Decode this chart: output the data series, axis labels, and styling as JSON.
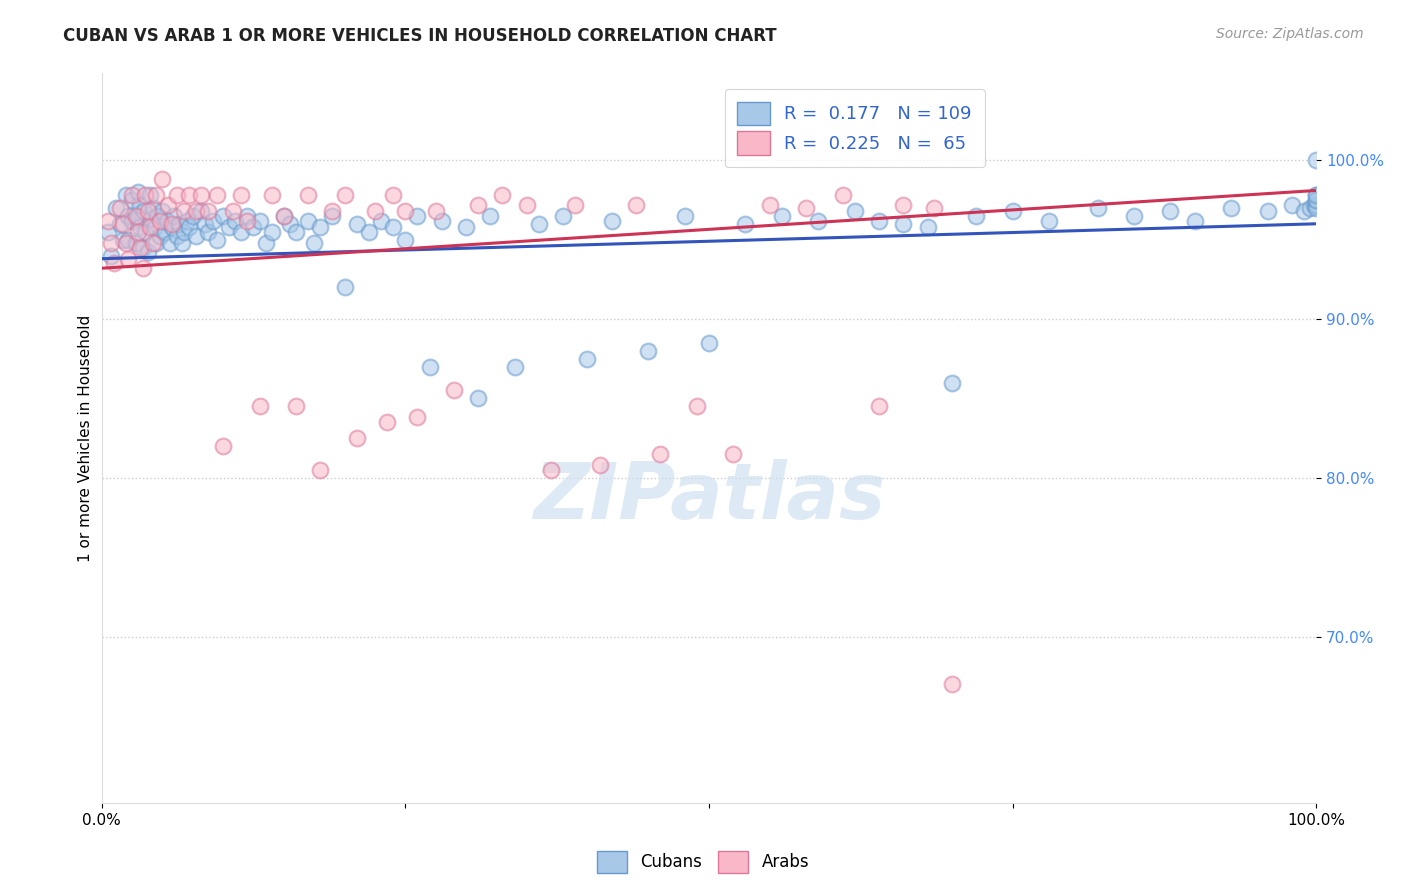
{
  "title": "CUBAN VS ARAB 1 OR MORE VEHICLES IN HOUSEHOLD CORRELATION CHART",
  "source": "Source: ZipAtlas.com",
  "ylabel": "1 or more Vehicles in Household",
  "ytick_labels": [
    "70.0%",
    "80.0%",
    "90.0%",
    "100.0%"
  ],
  "ytick_values": [
    0.7,
    0.8,
    0.9,
    1.0
  ],
  "xlim": [
    0.0,
    1.0
  ],
  "ylim": [
    0.595,
    1.055
  ],
  "legend_entries": [
    {
      "label": "Cubans",
      "color": "#a8c8e8",
      "edgecolor": "#6699cc",
      "R": 0.177,
      "N": 109
    },
    {
      "label": "Arabs",
      "color": "#f8b8c8",
      "edgecolor": "#dd7799",
      "R": 0.225,
      "N": 65
    }
  ],
  "watermark": "ZIPatlas",
  "blue_scatter_x": [
    0.005,
    0.008,
    0.012,
    0.015,
    0.018,
    0.02,
    0.022,
    0.022,
    0.025,
    0.025,
    0.028,
    0.03,
    0.03,
    0.032,
    0.032,
    0.034,
    0.035,
    0.036,
    0.038,
    0.04,
    0.04,
    0.042,
    0.044,
    0.045,
    0.046,
    0.048,
    0.05,
    0.052,
    0.054,
    0.056,
    0.058,
    0.06,
    0.062,
    0.064,
    0.066,
    0.068,
    0.07,
    0.072,
    0.075,
    0.078,
    0.082,
    0.085,
    0.088,
    0.092,
    0.095,
    0.1,
    0.105,
    0.11,
    0.115,
    0.12,
    0.125,
    0.13,
    0.135,
    0.14,
    0.15,
    0.155,
    0.16,
    0.17,
    0.175,
    0.18,
    0.19,
    0.2,
    0.21,
    0.22,
    0.23,
    0.24,
    0.25,
    0.26,
    0.27,
    0.28,
    0.3,
    0.31,
    0.32,
    0.34,
    0.36,
    0.38,
    0.4,
    0.42,
    0.45,
    0.48,
    0.5,
    0.53,
    0.56,
    0.59,
    0.62,
    0.64,
    0.66,
    0.68,
    0.7,
    0.72,
    0.75,
    0.78,
    0.82,
    0.85,
    0.88,
    0.9,
    0.93,
    0.96,
    0.98,
    0.99,
    0.995,
    0.998,
    1.0,
    1.0,
    1.0,
    1.0,
    1.0,
    1.0,
    1.0
  ],
  "blue_scatter_y": [
    0.955,
    0.94,
    0.97,
    0.96,
    0.95,
    0.978,
    0.965,
    0.95,
    0.975,
    0.962,
    0.948,
    0.98,
    0.965,
    0.972,
    0.958,
    0.945,
    0.968,
    0.955,
    0.942,
    0.978,
    0.963,
    0.97,
    0.958,
    0.948,
    0.965,
    0.952,
    0.968,
    0.955,
    0.962,
    0.948,
    0.958,
    0.965,
    0.952,
    0.96,
    0.948,
    0.955,
    0.962,
    0.958,
    0.965,
    0.952,
    0.968,
    0.96,
    0.955,
    0.962,
    0.95,
    0.965,
    0.958,
    0.962,
    0.955,
    0.965,
    0.958,
    0.962,
    0.948,
    0.955,
    0.965,
    0.96,
    0.955,
    0.962,
    0.948,
    0.958,
    0.965,
    0.92,
    0.96,
    0.955,
    0.962,
    0.958,
    0.95,
    0.965,
    0.87,
    0.962,
    0.958,
    0.85,
    0.965,
    0.87,
    0.96,
    0.965,
    0.875,
    0.962,
    0.88,
    0.965,
    0.885,
    0.96,
    0.965,
    0.962,
    0.968,
    0.962,
    0.96,
    0.958,
    0.86,
    0.965,
    0.968,
    0.962,
    0.97,
    0.965,
    0.968,
    0.962,
    0.97,
    0.968,
    0.972,
    0.968,
    0.97,
    0.972,
    0.978,
    0.972,
    0.975,
    0.97,
    0.975,
    0.978,
    1.0
  ],
  "pink_scatter_x": [
    0.005,
    0.008,
    0.01,
    0.015,
    0.018,
    0.02,
    0.022,
    0.025,
    0.028,
    0.03,
    0.032,
    0.034,
    0.036,
    0.038,
    0.04,
    0.042,
    0.045,
    0.048,
    0.05,
    0.055,
    0.058,
    0.062,
    0.068,
    0.072,
    0.078,
    0.082,
    0.088,
    0.095,
    0.1,
    0.108,
    0.115,
    0.12,
    0.13,
    0.14,
    0.15,
    0.16,
    0.17,
    0.18,
    0.19,
    0.2,
    0.21,
    0.225,
    0.235,
    0.25,
    0.26,
    0.275,
    0.29,
    0.31,
    0.33,
    0.35,
    0.37,
    0.39,
    0.41,
    0.44,
    0.46,
    0.49,
    0.52,
    0.55,
    0.58,
    0.61,
    0.64,
    0.66,
    0.685,
    0.7,
    0.24
  ],
  "pink_scatter_y": [
    0.962,
    0.948,
    0.935,
    0.97,
    0.96,
    0.948,
    0.938,
    0.978,
    0.965,
    0.955,
    0.945,
    0.932,
    0.978,
    0.968,
    0.958,
    0.948,
    0.978,
    0.962,
    0.988,
    0.972,
    0.96,
    0.978,
    0.968,
    0.978,
    0.968,
    0.978,
    0.968,
    0.978,
    0.82,
    0.968,
    0.978,
    0.962,
    0.845,
    0.978,
    0.965,
    0.845,
    0.978,
    0.805,
    0.968,
    0.978,
    0.825,
    0.968,
    0.835,
    0.968,
    0.838,
    0.968,
    0.855,
    0.972,
    0.978,
    0.972,
    0.805,
    0.972,
    0.808,
    0.972,
    0.815,
    0.845,
    0.815,
    0.972,
    0.97,
    0.978,
    0.845,
    0.972,
    0.97,
    0.67,
    0.978
  ],
  "blue_line_x": [
    0.0,
    1.0
  ],
  "blue_line_y": [
    0.938,
    0.96
  ],
  "pink_line_x": [
    0.0,
    1.0
  ],
  "pink_line_y": [
    0.932,
    0.981
  ],
  "scatter_size": 130,
  "scatter_alpha": 0.55,
  "scatter_linewidth": 1.5,
  "line_width": 2.2,
  "grid_color": "#cccccc",
  "background_color": "#ffffff",
  "title_fontsize": 12,
  "axis_label_fontsize": 11,
  "legend_fontsize": 13,
  "tick_fontsize": 11,
  "source_fontsize": 10
}
